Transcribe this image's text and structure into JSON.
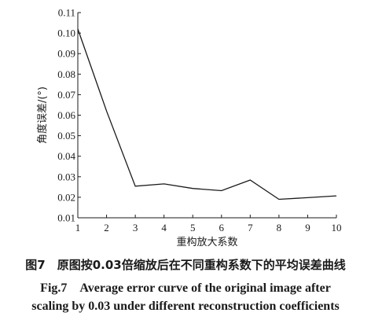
{
  "chart_data": {
    "type": "line",
    "x": [
      1,
      2,
      3,
      4,
      5,
      6,
      7,
      8,
      9,
      10
    ],
    "series": [
      {
        "values": [
          0.102,
          0.062,
          0.0254,
          0.0265,
          0.0243,
          0.0232,
          0.0284,
          0.019,
          0.0198,
          0.0207
        ]
      }
    ],
    "xlabel": "重构放大系数",
    "ylabel": "角度误差/(°)",
    "xlim": [
      1,
      10
    ],
    "ylim": [
      0.01,
      0.11
    ],
    "xticks": [
      "1",
      "2",
      "3",
      "4",
      "5",
      "6",
      "7",
      "8",
      "9",
      "10"
    ],
    "yticks": [
      "0.01",
      "0.02",
      "0.03",
      "0.04",
      "0.05",
      "0.06",
      "0.07",
      "0.08",
      "0.09",
      "0.10",
      "0.11"
    ],
    "grid": false,
    "line_color": "#1a1a1a"
  },
  "caption": {
    "chinese": "图7　原图按0.03倍缩放后在不同重构系数下的平均误差曲线",
    "english_line1": "Fig.7　Average error curve of the original image after",
    "english_line2": "scaling by 0.03 under different reconstruction coefficients"
  }
}
